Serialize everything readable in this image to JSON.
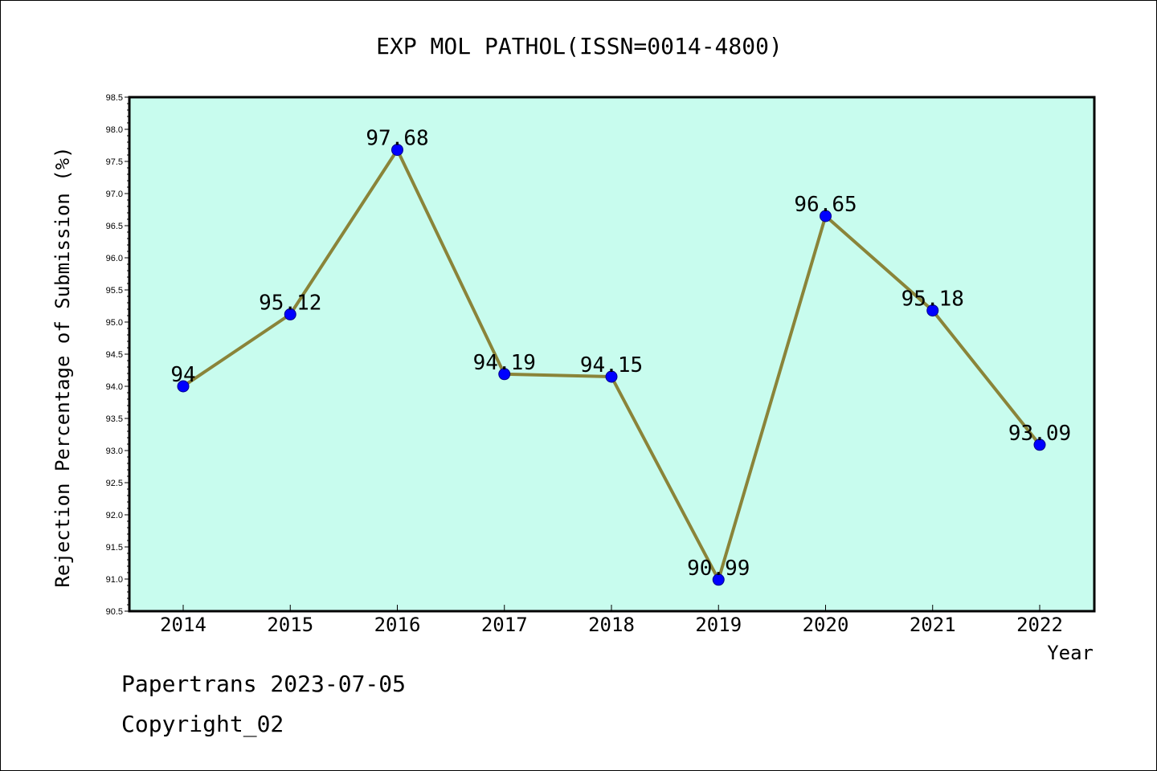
{
  "chart_data": {
    "type": "line",
    "title": "EXP MOL PATHOL(ISSN=0014-4800)",
    "xlabel": "Year",
    "ylabel": "Rejection Percentage of Submission (%)",
    "categories": [
      "2014",
      "2015",
      "2016",
      "2017",
      "2018",
      "2019",
      "2020",
      "2021",
      "2022"
    ],
    "values": [
      94,
      95.12,
      97.68,
      94.19,
      94.15,
      90.99,
      96.65,
      95.18,
      93.09
    ],
    "data_labels": [
      "94",
      "95.12",
      "97.68",
      "94.19",
      "94.15",
      "90.99",
      "96.65",
      "95.18",
      "93.09"
    ],
    "ylim": [
      90.5,
      98.5
    ],
    "yticks": [
      "90.5",
      "91.0",
      "91.5",
      "92.0",
      "92.5",
      "93.0",
      "93.5",
      "94.0",
      "94.5",
      "95.0",
      "95.5",
      "96.0",
      "96.5",
      "97.0",
      "97.5",
      "98.0",
      "98.5"
    ],
    "grid": false,
    "colors": {
      "plot_background": "#c8fcee",
      "line": "#8a8439",
      "marker": "#0000ff"
    }
  },
  "footer": {
    "line1": "Papertrans 2023-07-05",
    "line2": "Copyright_02"
  }
}
